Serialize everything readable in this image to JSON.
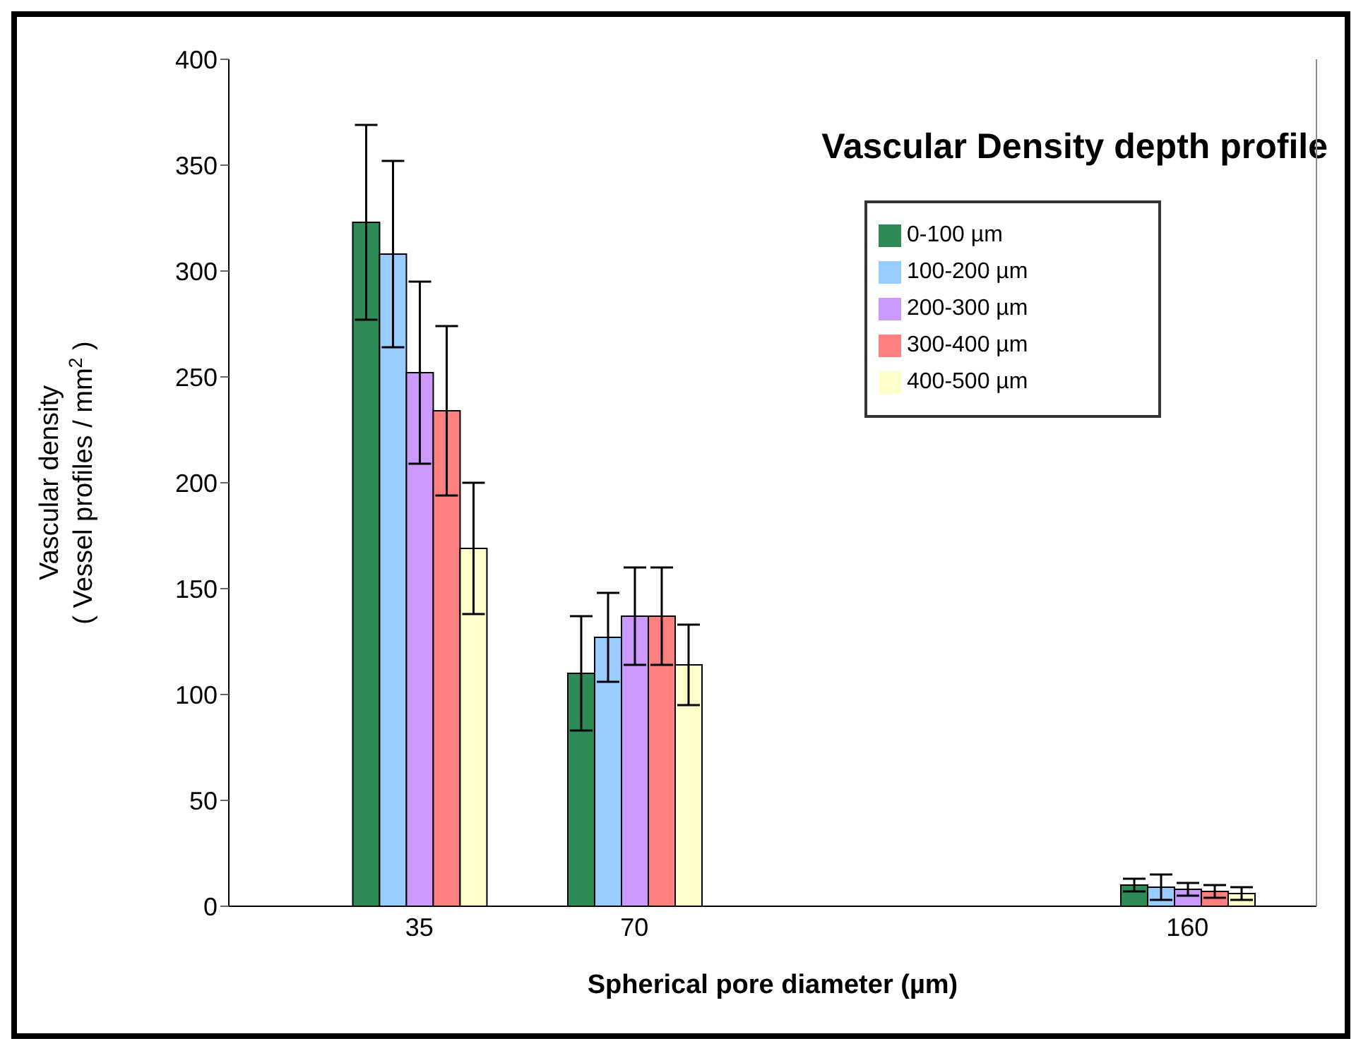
{
  "chart_data": {
    "type": "bar",
    "title": "Vascular Density depth profile",
    "xlabel": "Spherical pore diameter (µm)",
    "ylabel": "Vascular density\n( Vessel profiles / mm$^{2}$ )",
    "x": [
      35,
      70,
      160
    ],
    "xlim": [
      4,
      181
    ],
    "xticks": [
      35,
      70,
      160
    ],
    "ylim": [
      0,
      400
    ],
    "yticks": [
      0,
      50,
      100,
      150,
      200,
      250,
      300,
      350,
      400
    ],
    "legend": "top right",
    "series": [
      {
        "name": "0-100 µm",
        "color": "#2e8b57",
        "values": [
          323,
          110,
          10
        ],
        "errors": [
          46,
          27,
          3
        ]
      },
      {
        "name": "100-200 µm",
        "color": "#99ccff",
        "values": [
          308,
          127,
          9
        ],
        "errors": [
          44,
          21,
          6
        ]
      },
      {
        "name": "200-300 µm",
        "color": "#cc99ff",
        "values": [
          252,
          137,
          8
        ],
        "errors": [
          43,
          23,
          3
        ]
      },
      {
        "name": "300-400 µm",
        "color": "#ff8080",
        "values": [
          234,
          137,
          7
        ],
        "errors": [
          40,
          23,
          3
        ]
      },
      {
        "name": "400-500 µm",
        "color": "#ffffcc",
        "values": [
          169,
          114,
          6
        ],
        "errors": [
          31,
          19,
          3
        ]
      }
    ]
  }
}
